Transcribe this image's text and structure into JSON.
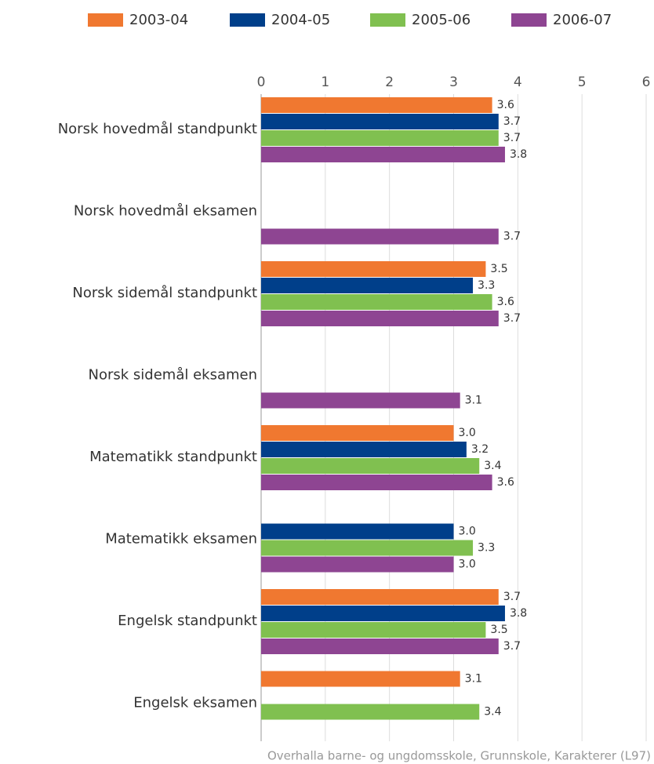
{
  "chart_data": {
    "type": "hbar",
    "categories": [
      "Norsk hovedmål standpunkt",
      "Norsk hovedmål eksamen",
      "Norsk sidemål standpunkt",
      "Norsk sidemål eksamen",
      "Matematikk standpunkt",
      "Matematikk eksamen",
      "Engelsk standpunkt",
      "Engelsk eksamen"
    ],
    "series": [
      {
        "name": "2003-04",
        "color": "#f07830",
        "values": [
          3.6,
          null,
          3.5,
          null,
          3.0,
          null,
          3.7,
          3.1
        ],
        "value_labels": [
          "3.6",
          null,
          "3.5",
          null,
          "3.0",
          null,
          "3.7",
          "3.1"
        ]
      },
      {
        "name": "2004-05",
        "color": "#003f8a",
        "values": [
          3.7,
          null,
          3.3,
          null,
          3.2,
          3.0,
          3.8,
          null
        ],
        "value_labels": [
          "3.7",
          null,
          "3.3",
          null,
          "3.2",
          "3.0",
          "3.8",
          null
        ]
      },
      {
        "name": "2005-06",
        "color": "#80c050",
        "values": [
          3.7,
          null,
          3.6,
          null,
          3.4,
          3.3,
          3.5,
          3.4
        ],
        "value_labels": [
          "3.7",
          null,
          "3.6",
          null,
          "3.4",
          "3.3",
          "3.5",
          "3.4"
        ]
      },
      {
        "name": "2006-07",
        "color": "#8e4592",
        "values": [
          3.8,
          3.7,
          3.7,
          3.1,
          3.6,
          3.0,
          3.7,
          null
        ],
        "value_labels": [
          "3.8",
          "3.7",
          "3.7",
          "3.1",
          "3.6",
          "3.0",
          "3.7",
          null
        ]
      }
    ],
    "xlim": [
      0,
      6
    ],
    "xticks": [
      0,
      1,
      2,
      3,
      4,
      5,
      6
    ],
    "grid": true,
    "footer": "Overhalla barne- og ungdomsskole, Grunnskole, Karakterer (L97)"
  }
}
